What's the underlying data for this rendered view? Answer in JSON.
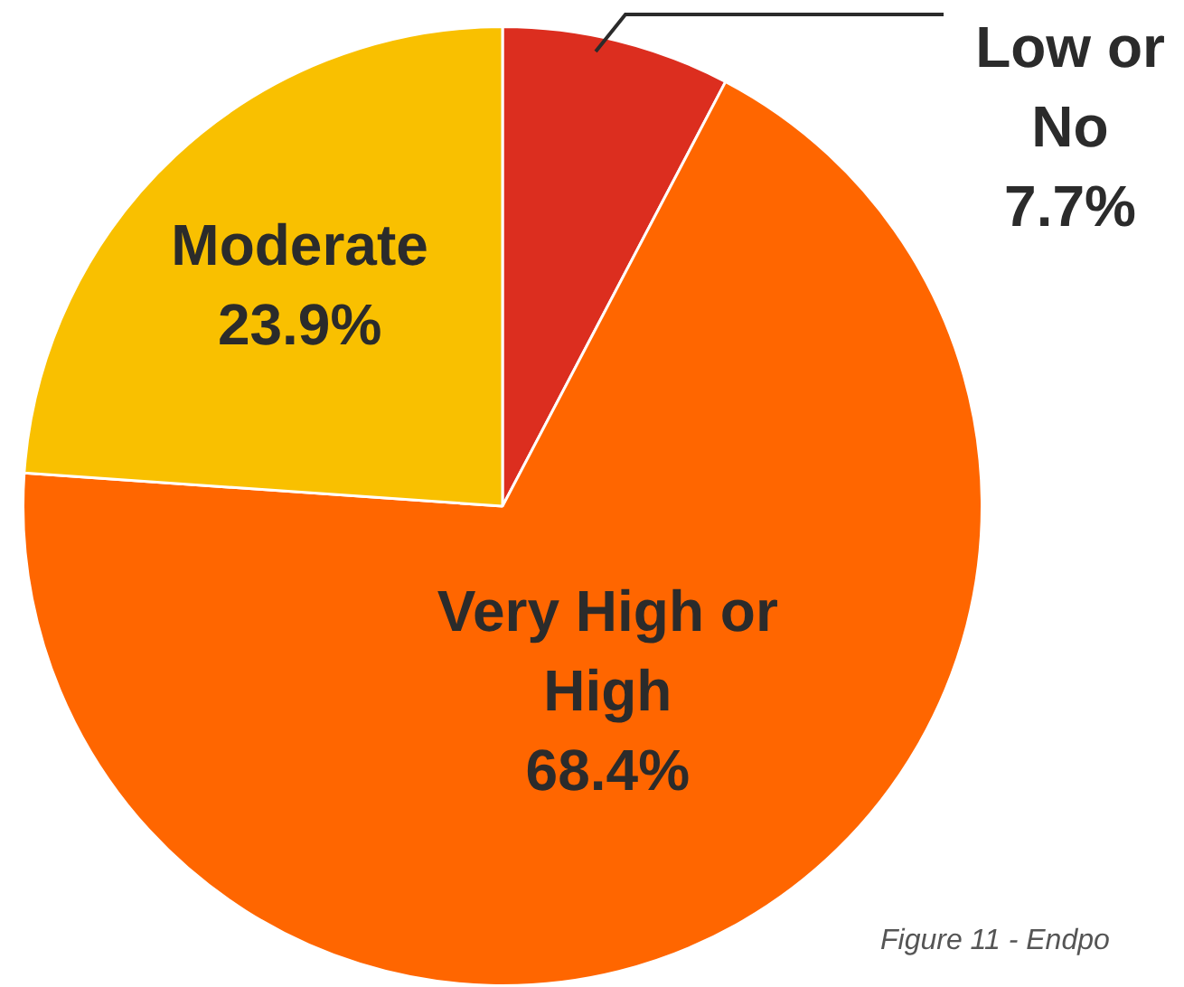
{
  "chart_data": {
    "type": "pie",
    "categories": [
      "Low or No",
      "Very High or High",
      "Moderate"
    ],
    "values": [
      7.7,
      68.4,
      23.9
    ],
    "colors": [
      "#dc2e1f",
      "#ff6600",
      "#f9c000"
    ],
    "value_labels": [
      "7.7%",
      "68.4%",
      "23.9%"
    ],
    "legend": false,
    "annotations": [
      "Figure 11 - Endpo"
    ]
  }
}
